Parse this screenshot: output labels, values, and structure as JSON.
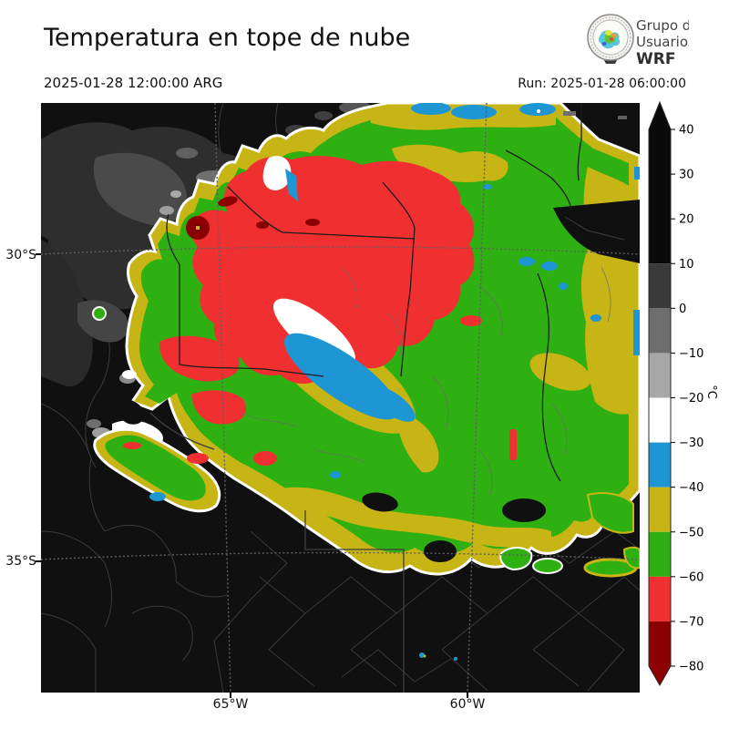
{
  "header": {
    "title": "Temperatura en tope de nube",
    "valid_time": "2025-01-28 12:00:00 ARG",
    "run_label": "Run: 2025-01-28 06:00:00"
  },
  "logo": {
    "org_line1": "Grupo de",
    "org_line2": "Usuarios",
    "org_line3": "WRF"
  },
  "axes": {
    "lat_ticks": [
      {
        "label": "30°S"
      },
      {
        "label": "35°S"
      }
    ],
    "lon_ticks": [
      {
        "label": "65°W"
      },
      {
        "label": "60°W"
      }
    ]
  },
  "colorbar": {
    "unit": "°C",
    "value_min": -80,
    "value_max": 40,
    "arrow_top_color": "#0a0a0a",
    "arrow_bottom_color": "#8b0000",
    "ticks": [
      {
        "value": 40,
        "label": "40"
      },
      {
        "value": 30,
        "label": "30"
      },
      {
        "value": 20,
        "label": "20"
      },
      {
        "value": 10,
        "label": "10"
      },
      {
        "value": 0,
        "label": "0"
      },
      {
        "value": -10,
        "label": "−10"
      },
      {
        "value": -20,
        "label": "−20"
      },
      {
        "value": -30,
        "label": "−30"
      },
      {
        "value": -40,
        "label": "−40"
      },
      {
        "value": -50,
        "label": "−50"
      },
      {
        "value": -60,
        "label": "−60"
      },
      {
        "value": -70,
        "label": "−70"
      },
      {
        "value": -80,
        "label": "−80"
      }
    ],
    "segments": [
      {
        "from": 10,
        "to": 40,
        "color": "#0a0a0a"
      },
      {
        "from": 0,
        "to": 10,
        "color": "#3a3a3a"
      },
      {
        "from": -10,
        "to": 0,
        "color": "#6e6e6e"
      },
      {
        "from": -20,
        "to": -10,
        "color": "#a8a8a8"
      },
      {
        "from": -30,
        "to": -20,
        "color": "#ffffff"
      },
      {
        "from": -40,
        "to": -30,
        "color": "#1e96d3"
      },
      {
        "from": -50,
        "to": -40,
        "color": "#c6b515"
      },
      {
        "from": -60,
        "to": -50,
        "color": "#2eb012"
      },
      {
        "from": -70,
        "to": -60,
        "color": "#f03030"
      },
      {
        "from": -80,
        "to": -70,
        "color": "#8b0000"
      }
    ]
  }
}
